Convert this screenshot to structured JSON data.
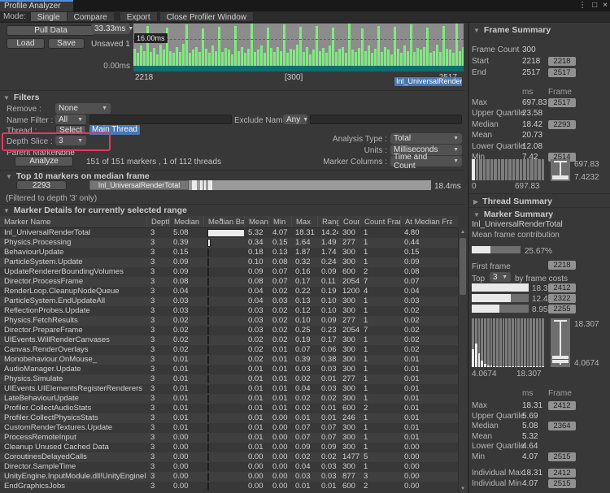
{
  "window": {
    "tab_title": "Profile Analyzer",
    "icons": {
      "menu": "⋮",
      "maximize": "□",
      "close": "×"
    }
  },
  "toolbar": {
    "mode_label": "Mode:",
    "single": "Single",
    "compare": "Compare",
    "export": "Export",
    "close_profiler": "Close Profiler Window"
  },
  "controls": {
    "pull_data": "Pull Data",
    "load": "Load",
    "save": "Save",
    "unsaved": "Unsaved 1",
    "frame_time_scale": "33.33ms"
  },
  "frame_chart": {
    "threshold_label": "16.00ms",
    "zero_label": "0.00ms",
    "x_start": "2218",
    "x_mid": "[300]",
    "x_end": "2517",
    "selected_marker": "Inl_UniversalRenderTotal",
    "max_ms": 40,
    "bars_ms": [
      16,
      12,
      19,
      14,
      38,
      13,
      17,
      11,
      20,
      15,
      36,
      14,
      12,
      18,
      13,
      21,
      39,
      12,
      15,
      18,
      13,
      35,
      16,
      12,
      19,
      14,
      37,
      13,
      17,
      15,
      11,
      38,
      14,
      18,
      12,
      16,
      40,
      13,
      15,
      19,
      12,
      36,
      17,
      13,
      18,
      14,
      39,
      12,
      16,
      15,
      20,
      37,
      13,
      18,
      11,
      15,
      38,
      14,
      17,
      12,
      19,
      36,
      13,
      16,
      18,
      12,
      40,
      15,
      13,
      17,
      35,
      14,
      19,
      12,
      16,
      38,
      13,
      18,
      15,
      11,
      37,
      16,
      12,
      19,
      14,
      39,
      13,
      17,
      15,
      18,
      36,
      12,
      14,
      20,
      13,
      38,
      16,
      15,
      12,
      40,
      14,
      18
    ]
  },
  "filters": {
    "title": "Filters",
    "remove_label": "Remove :",
    "remove_value": "None",
    "name_filter_label": "Name Filter :",
    "name_filter_mode": "All",
    "name_filter_value": "",
    "exclude_label": "Exclude Names :",
    "exclude_mode": "Any",
    "exclude_value": "",
    "thread_label": "Thread :",
    "thread_select": "Select",
    "thread_value": "Main Thread",
    "depth_label": "Depth Slice :",
    "depth_value": "3",
    "parent_label": "Parent Marker :",
    "parent_value": "None",
    "analyze": "Analyze",
    "analyze_info": "151 of 151 markers , 1 of 112 threads",
    "analysis_type_label": "Analysis Type :",
    "analysis_type": "Total",
    "units_label": "Units :",
    "units": "Milliseconds",
    "marker_columns_label": "Marker Columns :",
    "marker_columns": "Time and Count"
  },
  "top10": {
    "title": "Top 10 markers on median frame",
    "frame_button": "2293",
    "marker_label": "Inl_UniversalRenderTotal",
    "value": "18.4ms",
    "note": "(Filtered to depth '3' only)"
  },
  "marker_table": {
    "title": "Marker Details for currently selected range",
    "columns": [
      "Marker Name",
      "Depth",
      "Median",
      "Median Bar",
      "Mean",
      "Min",
      "Max",
      "Range",
      "Count",
      "Count Frame",
      "At Median Frame"
    ],
    "max_median": 5.08,
    "rows": [
      {
        "name": "Inl_UniversalRenderTotal",
        "depth": "3",
        "median": "5.08",
        "mean": "5.32",
        "min": "4.07",
        "max": "18.31",
        "range": "14.24",
        "count": "300",
        "count_frame": "1",
        "at_median": "4.80"
      },
      {
        "name": "Physics.Processing",
        "depth": "3",
        "median": "0.39",
        "mean": "0.34",
        "min": "0.15",
        "max": "1.64",
        "range": "1.49",
        "count": "277",
        "count_frame": "1",
        "at_median": "0.44"
      },
      {
        "name": "BehaviourUpdate",
        "depth": "3",
        "median": "0.15",
        "mean": "0.18",
        "min": "0.13",
        "max": "1.87",
        "range": "1.74",
        "count": "300",
        "count_frame": "1",
        "at_median": "0.15"
      },
      {
        "name": "ParticleSystem.Update",
        "depth": "3",
        "median": "0.09",
        "mean": "0.10",
        "min": "0.08",
        "max": "0.32",
        "range": "0.24",
        "count": "300",
        "count_frame": "1",
        "at_median": "0.09"
      },
      {
        "name": "UpdateRendererBoundingVolumes",
        "depth": "3",
        "median": "0.09",
        "mean": "0.09",
        "min": "0.07",
        "max": "0.16",
        "range": "0.09",
        "count": "600",
        "count_frame": "2",
        "at_median": "0.08"
      },
      {
        "name": "Director.ProcessFrame",
        "depth": "3",
        "median": "0.08",
        "mean": "0.08",
        "min": "0.07",
        "max": "0.17",
        "range": "0.11",
        "count": "2054",
        "count_frame": "7",
        "at_median": "0.07"
      },
      {
        "name": "RenderLoop.CleanupNodeQueue",
        "depth": "3",
        "median": "0.04",
        "mean": "0.04",
        "min": "0.02",
        "max": "0.22",
        "range": "0.19",
        "count": "1200",
        "count_frame": "4",
        "at_median": "0.04"
      },
      {
        "name": "ParticleSystem.EndUpdateAll",
        "depth": "3",
        "median": "0.03",
        "mean": "0.04",
        "min": "0.03",
        "max": "0.13",
        "range": "0.10",
        "count": "300",
        "count_frame": "1",
        "at_median": "0.03"
      },
      {
        "name": "ReflectionProbes.Update",
        "depth": "3",
        "median": "0.03",
        "mean": "0.03",
        "min": "0.02",
        "max": "0.12",
        "range": "0.10",
        "count": "300",
        "count_frame": "1",
        "at_median": "0.02"
      },
      {
        "name": "Physics.FetchResults",
        "depth": "3",
        "median": "0.02",
        "mean": "0.03",
        "min": "0.02",
        "max": "0.10",
        "range": "0.09",
        "count": "277",
        "count_frame": "1",
        "at_median": "0.02"
      },
      {
        "name": "Director.PrepareFrame",
        "depth": "3",
        "median": "0.02",
        "mean": "0.03",
        "min": "0.02",
        "max": "0.25",
        "range": "0.23",
        "count": "2054",
        "count_frame": "7",
        "at_median": "0.02"
      },
      {
        "name": "UIEvents.WillRenderCanvases",
        "depth": "3",
        "median": "0.02",
        "mean": "0.02",
        "min": "0.02",
        "max": "0.19",
        "range": "0.17",
        "count": "300",
        "count_frame": "1",
        "at_median": "0.02"
      },
      {
        "name": "Canvas.RenderOverlays",
        "depth": "3",
        "median": "0.02",
        "mean": "0.02",
        "min": "0.01",
        "max": "0.07",
        "range": "0.06",
        "count": "300",
        "count_frame": "1",
        "at_median": "0.02"
      },
      {
        "name": "Monobehaviour.OnMouse_",
        "depth": "3",
        "median": "0.01",
        "mean": "0.02",
        "min": "0.01",
        "max": "0.39",
        "range": "0.38",
        "count": "300",
        "count_frame": "1",
        "at_median": "0.01"
      },
      {
        "name": "AudioManager.Update",
        "depth": "3",
        "median": "0.01",
        "mean": "0.01",
        "min": "0.01",
        "max": "0.03",
        "range": "0.03",
        "count": "300",
        "count_frame": "1",
        "at_median": "0.01"
      },
      {
        "name": "Physics.Simulate",
        "depth": "3",
        "median": "0.01",
        "mean": "0.01",
        "min": "0.01",
        "max": "0.02",
        "range": "0.01",
        "count": "277",
        "count_frame": "1",
        "at_median": "0.01"
      },
      {
        "name": "UIEvents.UIElementsRegisterRenderers",
        "depth": "3",
        "median": "0.01",
        "mean": "0.01",
        "min": "0.01",
        "max": "0.04",
        "range": "0.03",
        "count": "300",
        "count_frame": "1",
        "at_median": "0.01"
      },
      {
        "name": "LateBehaviourUpdate",
        "depth": "3",
        "median": "0.01",
        "mean": "0.01",
        "min": "0.01",
        "max": "0.02",
        "range": "0.02",
        "count": "300",
        "count_frame": "1",
        "at_median": "0.01"
      },
      {
        "name": "Profiler.CollectAudioStats",
        "depth": "3",
        "median": "0.01",
        "mean": "0.01",
        "min": "0.01",
        "max": "0.02",
        "range": "0.01",
        "count": "600",
        "count_frame": "2",
        "at_median": "0.01"
      },
      {
        "name": "Profiler.CollectPhysicsStats",
        "depth": "3",
        "median": "0.01",
        "mean": "0.01",
        "min": "0.00",
        "max": "0.01",
        "range": "0.01",
        "count": "246",
        "count_frame": "1",
        "at_median": "0.01"
      },
      {
        "name": "CustomRenderTextures.Update",
        "depth": "3",
        "median": "0.01",
        "mean": "0.01",
        "min": "0.00",
        "max": "0.07",
        "range": "0.07",
        "count": "300",
        "count_frame": "1",
        "at_median": "0.01"
      },
      {
        "name": "ProcessRemoteInput",
        "depth": "3",
        "median": "0.00",
        "mean": "0.01",
        "min": "0.00",
        "max": "0.07",
        "range": "0.07",
        "count": "300",
        "count_frame": "1",
        "at_median": "0.01"
      },
      {
        "name": "Cleanup Unused Cached Data",
        "depth": "3",
        "median": "0.00",
        "mean": "0.01",
        "min": "0.00",
        "max": "0.09",
        "range": "0.09",
        "count": "300",
        "count_frame": "1",
        "at_median": "0.00"
      },
      {
        "name": "CoroutinesDelayedCalls",
        "depth": "3",
        "median": "0.00",
        "mean": "0.00",
        "min": "0.00",
        "max": "0.02",
        "range": "0.02",
        "count": "1477",
        "count_frame": "5",
        "at_median": "0.00"
      },
      {
        "name": "Director.SampleTime",
        "depth": "3",
        "median": "0.00",
        "mean": "0.00",
        "min": "0.00",
        "max": "0.04",
        "range": "0.03",
        "count": "300",
        "count_frame": "1",
        "at_median": "0.00"
      },
      {
        "name": "UnityEngine.InputModule.dll!UnityEngineInternal.Inpu",
        "depth": "3",
        "median": "0.00",
        "mean": "0.00",
        "min": "0.00",
        "max": "0.03",
        "range": "0.03",
        "count": "877",
        "count_frame": "3",
        "at_median": "0.00"
      },
      {
        "name": "EndGraphicsJobs",
        "depth": "3",
        "median": "0.00",
        "mean": "0.00",
        "min": "0.00",
        "max": "0.01",
        "range": "0.01",
        "count": "600",
        "count_frame": "2",
        "at_median": "0.00"
      }
    ]
  },
  "frame_summary": {
    "title": "Frame Summary",
    "rows_top": [
      {
        "label": "Frame Count",
        "ms": "300"
      },
      {
        "label": "Start",
        "ms": "2218",
        "frame": "2218"
      },
      {
        "label": "End",
        "ms": "2517",
        "frame": "2517"
      }
    ],
    "col_ms": "ms",
    "col_frame": "Frame",
    "stats": [
      {
        "label": "Max",
        "ms": "697.83",
        "frame": "2517"
      },
      {
        "label": "Upper Quartile",
        "ms": "23.58"
      },
      {
        "label": "Median",
        "ms": "18.42",
        "frame": "2293"
      },
      {
        "label": "Mean",
        "ms": "20.73"
      },
      {
        "label": "Lower Quartile",
        "ms": "12.08"
      },
      {
        "label": "Min",
        "ms": "7.42",
        "frame": "2514"
      }
    ],
    "histogram": [
      100,
      0,
      0,
      0,
      0,
      0,
      0,
      0,
      0,
      0,
      0,
      0,
      0,
      0,
      0,
      0,
      0,
      0,
      0,
      0
    ],
    "hist_x0": "0",
    "hist_x1": "697.83",
    "box_top_label": "697.83",
    "box_bottom_label": "7.4232"
  },
  "thread_summary": {
    "title": "Thread Summary"
  },
  "marker_summary": {
    "title": "Marker Summary",
    "marker_name": "Inl_UniversalRenderTotal",
    "contribution_label": "Mean frame contribution",
    "contribution_pct": "25.67%",
    "contribution_fill": 38,
    "first_frame_label": "First frame",
    "first_frame_button": "2218",
    "top_label": "Top",
    "top_value": "3",
    "top_suffix": "by frame costs",
    "top_costs": [
      {
        "ms": "18.3ms",
        "frame": "2412",
        "fill": 100
      },
      {
        "ms": "12.4ms",
        "frame": "2322",
        "fill": 68
      },
      {
        "ms": "8.95ms",
        "frame": "2255",
        "fill": 49
      }
    ],
    "histogram": [
      36,
      48,
      28,
      13,
      6,
      4,
      3,
      2,
      2,
      1,
      2,
      1,
      2,
      1,
      1,
      2,
      1,
      1,
      1,
      2,
      1,
      1,
      1,
      2
    ],
    "hist_x0": "4.0674",
    "hist_x1": "18.307",
    "box_top_label": "18.307",
    "box_bottom_label": "4.0674",
    "col_ms": "ms",
    "col_frame": "Frame",
    "stats": [
      {
        "label": "Max",
        "ms": "18.31",
        "frame": "2412"
      },
      {
        "label": "Upper Quartile",
        "ms": "5.69"
      },
      {
        "label": "Median",
        "ms": "5.08",
        "frame": "2364"
      },
      {
        "label": "Mean",
        "ms": "5.32"
      },
      {
        "label": "Lower Quartile",
        "ms": "4.64"
      },
      {
        "label": "Min",
        "ms": "4.07",
        "frame": "2515"
      }
    ],
    "individual": [
      {
        "label": "Individual Max",
        "ms": "18.31",
        "frame": "2412"
      },
      {
        "label": "Individual Min",
        "ms": "4.07",
        "frame": "2515"
      }
    ]
  }
}
